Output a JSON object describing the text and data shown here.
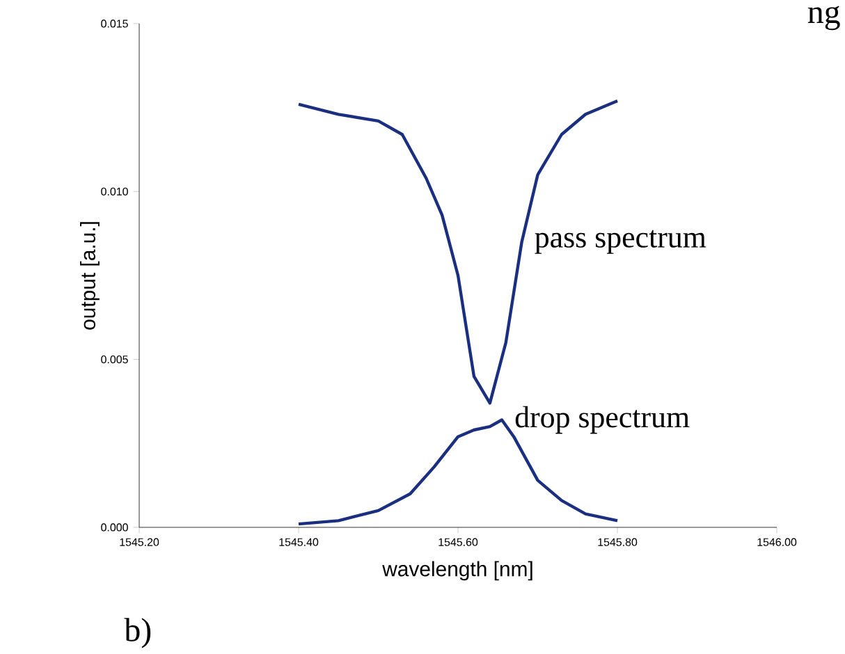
{
  "chart_data": {
    "type": "line",
    "xlabel": "wavelength [nm]",
    "ylabel": "output [a.u.]",
    "xlim": [
      1545.2,
      1546.0
    ],
    "ylim": [
      0,
      0.015
    ],
    "xticks": [
      {
        "value": 1545.2,
        "label": "1545.20"
      },
      {
        "value": 1545.4,
        "label": "1545.40"
      },
      {
        "value": 1545.6,
        "label": "1545.60"
      },
      {
        "value": 1545.8,
        "label": "1545.80"
      },
      {
        "value": 1546.0,
        "label": "1546.00"
      }
    ],
    "yticks": [
      {
        "value": 0,
        "label": "0.000"
      },
      0.005,
      {
        "value": 0.01,
        "label": "0.010"
      },
      0.015
    ],
    "grid": false,
    "legend": false,
    "marker": "none",
    "line_style": "solid",
    "series": [
      {
        "name": "pass spectrum",
        "color": "#1a2f80",
        "x": [
          1545.4,
          1545.45,
          1545.5,
          1545.53,
          1545.56,
          1545.58,
          1545.6,
          1545.62,
          1545.64,
          1545.66,
          1545.68,
          1545.7,
          1545.73,
          1545.76,
          1545.8
        ],
        "values": [
          0.0126,
          0.0123,
          0.0121,
          0.0117,
          0.0104,
          0.0093,
          0.0075,
          0.0045,
          0.0037,
          0.0055,
          0.0085,
          0.0105,
          0.0117,
          0.0123,
          0.0127
        ]
      },
      {
        "name": "drop spectrum",
        "color": "#1a2f80",
        "x": [
          1545.4,
          1545.45,
          1545.5,
          1545.54,
          1545.57,
          1545.6,
          1545.62,
          1545.64,
          1545.655,
          1545.67,
          1545.7,
          1545.73,
          1545.76,
          1545.8
        ],
        "values": [
          0.0001,
          0.0002,
          0.0005,
          0.001,
          0.0018,
          0.0027,
          0.0029,
          0.003,
          0.0032,
          0.0027,
          0.0014,
          0.0008,
          0.0004,
          0.0002
        ]
      }
    ],
    "annotations": [
      "b)",
      "ng"
    ]
  }
}
